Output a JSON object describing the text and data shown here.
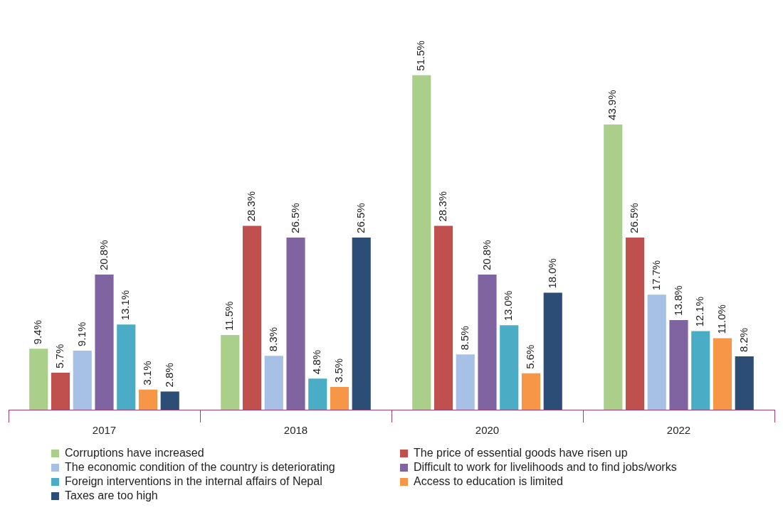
{
  "chart_data": {
    "type": "bar",
    "categories": [
      "2017",
      "2018",
      "2020",
      "2022"
    ],
    "series": [
      {
        "name": "Corruptions have increased",
        "color": "#a9cf8a",
        "values": [
          9.4,
          11.5,
          51.5,
          43.9
        ],
        "value_labels": [
          "9.4%",
          "11.5%",
          "51.5%",
          "43.9%"
        ]
      },
      {
        "name": "The price of essential goods have risen up",
        "color": "#c0504d",
        "values": [
          5.7,
          28.3,
          28.3,
          26.5
        ],
        "value_labels": [
          "5.7%",
          "28.3%",
          "28.3%",
          "26.5%"
        ]
      },
      {
        "name": "The economic condition of the country is deteriorating",
        "color": "#a6c0e6",
        "values": [
          9.1,
          8.3,
          8.5,
          17.7
        ],
        "value_labels": [
          "9.1%",
          "8.3%",
          "8.5%",
          "17.7%"
        ]
      },
      {
        "name": "Difficult to work for livelihoods and to find jobs/works",
        "color": "#8064a2",
        "values": [
          20.8,
          26.5,
          20.8,
          13.8
        ],
        "value_labels": [
          "20.8%",
          "26.5%",
          "20.8%",
          "13.8%"
        ]
      },
      {
        "name": "Foreign interventions in the internal affairs of Nepal",
        "color": "#4bacc6",
        "values": [
          13.1,
          4.8,
          13.0,
          12.1
        ],
        "value_labels": [
          "13.1%",
          "4.8%",
          "13.0%",
          "12.1%"
        ]
      },
      {
        "name": "Access to education is limited",
        "color": "#f79646",
        "values": [
          3.1,
          3.5,
          5.6,
          11.0
        ],
        "value_labels": [
          "3.1%",
          "3.5%",
          "5.6%",
          "11.0%"
        ]
      },
      {
        "name": "Taxes are too high",
        "color": "#2c4d75",
        "values": [
          2.8,
          26.5,
          18.0,
          8.2
        ],
        "value_labels": [
          "2.8%",
          "26.5%",
          "18.0%",
          "8.2%"
        ]
      }
    ],
    "legend": "bottom",
    "tick_labels": "x"
  }
}
